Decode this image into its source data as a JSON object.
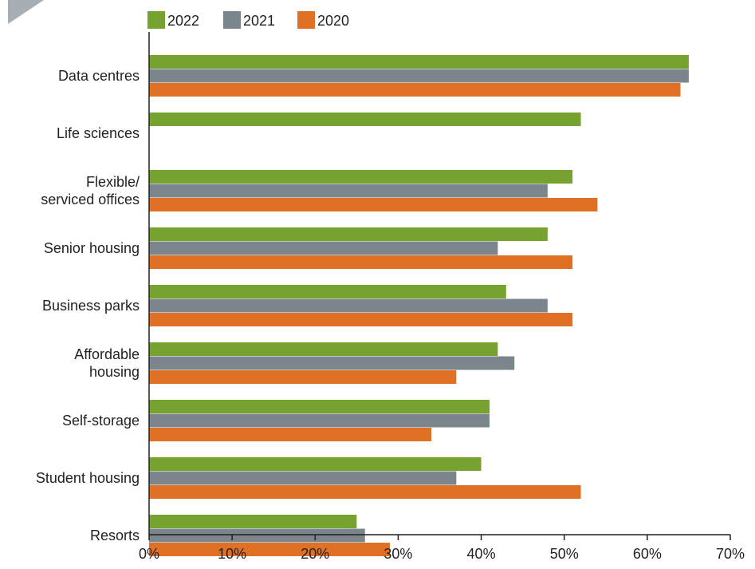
{
  "chart_data": {
    "type": "bar",
    "orientation": "horizontal",
    "categories": [
      [
        "Data centres"
      ],
      [
        "Life sciences"
      ],
      [
        "Flexible/",
        "serviced offices"
      ],
      [
        "Senior housing"
      ],
      [
        "Business parks"
      ],
      [
        "Affordable",
        "housing"
      ],
      [
        "Self-storage"
      ],
      [
        "Student housing"
      ],
      [
        "Resorts"
      ]
    ],
    "series": [
      {
        "name": "2022",
        "color": "#76a22f",
        "values": [
          65,
          52,
          51,
          48,
          43,
          42,
          41,
          40,
          25
        ]
      },
      {
        "name": "2021",
        "color": "#7b868c",
        "values": [
          65,
          null,
          48,
          42,
          48,
          44,
          41,
          37,
          26
        ]
      },
      {
        "name": "2020",
        "color": "#e07024",
        "values": [
          64,
          null,
          54,
          51,
          51,
          37,
          34,
          52,
          29
        ]
      }
    ],
    "xlim": [
      0,
      70
    ],
    "xticks": [
      0,
      10,
      20,
      30,
      40,
      50,
      60,
      70
    ],
    "tick_labels": [
      "0%",
      "10%",
      "20%",
      "30%",
      "40%",
      "50%",
      "60%",
      "70%"
    ],
    "legend_position": "top",
    "grid": false,
    "title": "",
    "xlabel": "",
    "ylabel": ""
  }
}
